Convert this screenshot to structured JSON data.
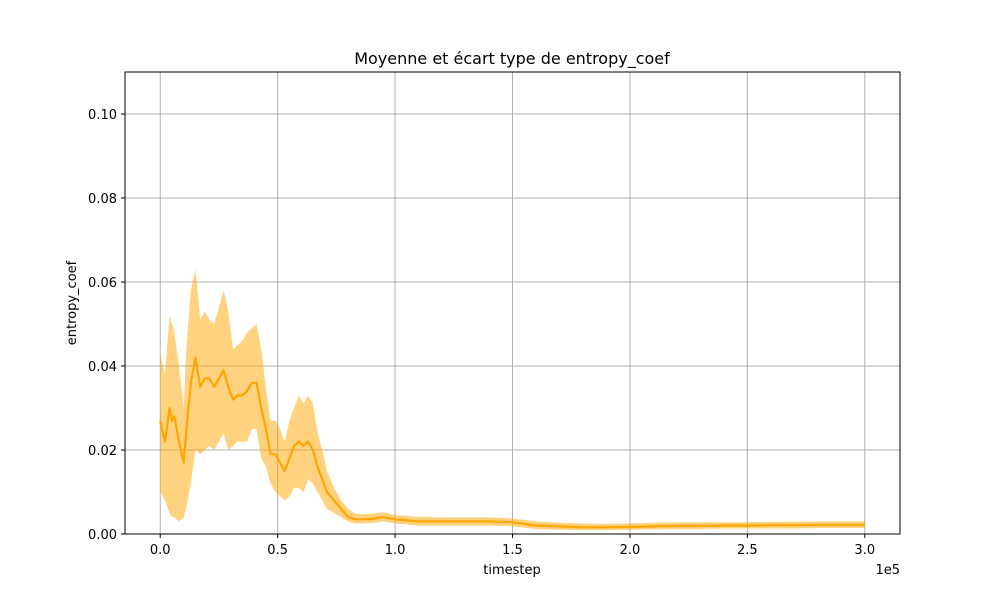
{
  "chart_data": {
    "type": "area",
    "title": "Moyenne et écart type de entropy_coef",
    "xlabel": "timestep",
    "ylabel": "entropy_coef",
    "x_offset_label": "1e5",
    "xlim": [
      -0.15,
      3.15
    ],
    "ylim": [
      0.0,
      0.11
    ],
    "x_ticks": [
      0.0,
      0.5,
      1.0,
      1.5,
      2.0,
      2.5,
      3.0
    ],
    "x_tick_labels": [
      "0.0",
      "0.5",
      "1.0",
      "1.5",
      "2.0",
      "2.5",
      "3.0"
    ],
    "y_ticks": [
      0.0,
      0.02,
      0.04,
      0.06,
      0.08,
      0.1
    ],
    "y_tick_labels": [
      "0.00",
      "0.02",
      "0.04",
      "0.06",
      "0.08",
      "0.10"
    ],
    "grid": true,
    "colors": {
      "line": "#ffa500",
      "band": "#ffa500",
      "grid": "#b0b0b0"
    },
    "series": [
      {
        "x": [
          0.0,
          0.02,
          0.04,
          0.05,
          0.06,
          0.08,
          0.1,
          0.11,
          0.13,
          0.15,
          0.17,
          0.19,
          0.21,
          0.23,
          0.25,
          0.27,
          0.29,
          0.31,
          0.33,
          0.35,
          0.37,
          0.39,
          0.41,
          0.43,
          0.45,
          0.47,
          0.49,
          0.51,
          0.53,
          0.55,
          0.57,
          0.59,
          0.61,
          0.63,
          0.65,
          0.67,
          0.69,
          0.71,
          0.74,
          0.77,
          0.8,
          0.83,
          0.86,
          0.9,
          0.95,
          1.0,
          1.1,
          1.2,
          1.3,
          1.4,
          1.5,
          1.6,
          1.7,
          1.8,
          1.9,
          2.0,
          2.1,
          2.2,
          2.3,
          2.4,
          2.5,
          2.6,
          2.7,
          2.8,
          2.9,
          3.0
        ],
        "mean": [
          0.027,
          0.022,
          0.03,
          0.027,
          0.028,
          0.022,
          0.017,
          0.024,
          0.036,
          0.042,
          0.035,
          0.037,
          0.037,
          0.035,
          0.037,
          0.039,
          0.035,
          0.032,
          0.033,
          0.033,
          0.034,
          0.036,
          0.036,
          0.03,
          0.025,
          0.019,
          0.019,
          0.017,
          0.015,
          0.018,
          0.021,
          0.022,
          0.021,
          0.022,
          0.02,
          0.016,
          0.013,
          0.01,
          0.008,
          0.006,
          0.004,
          0.0035,
          0.0035,
          0.0036,
          0.004,
          0.0035,
          0.003,
          0.003,
          0.003,
          0.003,
          0.0028,
          0.002,
          0.0018,
          0.0016,
          0.0016,
          0.0017,
          0.0018,
          0.0019,
          0.0019,
          0.002,
          0.002,
          0.0021,
          0.0021,
          0.0022,
          0.0022,
          0.0022
        ],
        "lower": [
          0.01,
          0.008,
          0.005,
          0.004,
          0.004,
          0.003,
          0.004,
          0.006,
          0.012,
          0.02,
          0.019,
          0.02,
          0.021,
          0.02,
          0.022,
          0.024,
          0.02,
          0.021,
          0.022,
          0.022,
          0.022,
          0.025,
          0.025,
          0.018,
          0.016,
          0.012,
          0.01,
          0.009,
          0.008,
          0.009,
          0.011,
          0.011,
          0.01,
          0.013,
          0.012,
          0.01,
          0.008,
          0.006,
          0.005,
          0.004,
          0.003,
          0.0025,
          0.0025,
          0.0026,
          0.003,
          0.0025,
          0.002,
          0.002,
          0.002,
          0.002,
          0.0018,
          0.0012,
          0.001,
          0.0009,
          0.0009,
          0.001,
          0.0011,
          0.0012,
          0.0012,
          0.0013,
          0.0013,
          0.0013,
          0.0013,
          0.0014,
          0.0014,
          0.0014
        ],
        "upper": [
          0.043,
          0.038,
          0.052,
          0.05,
          0.048,
          0.04,
          0.03,
          0.043,
          0.058,
          0.063,
          0.051,
          0.053,
          0.051,
          0.05,
          0.054,
          0.058,
          0.053,
          0.044,
          0.045,
          0.046,
          0.048,
          0.049,
          0.05,
          0.044,
          0.035,
          0.027,
          0.027,
          0.025,
          0.022,
          0.027,
          0.03,
          0.033,
          0.031,
          0.033,
          0.031,
          0.024,
          0.02,
          0.015,
          0.011,
          0.008,
          0.006,
          0.0048,
          0.0047,
          0.0048,
          0.0052,
          0.0045,
          0.0041,
          0.004,
          0.004,
          0.004,
          0.0037,
          0.003,
          0.0027,
          0.0025,
          0.0024,
          0.0025,
          0.0027,
          0.0028,
          0.0028,
          0.0028,
          0.0028,
          0.0029,
          0.0029,
          0.003,
          0.003,
          0.003
        ]
      }
    ]
  }
}
